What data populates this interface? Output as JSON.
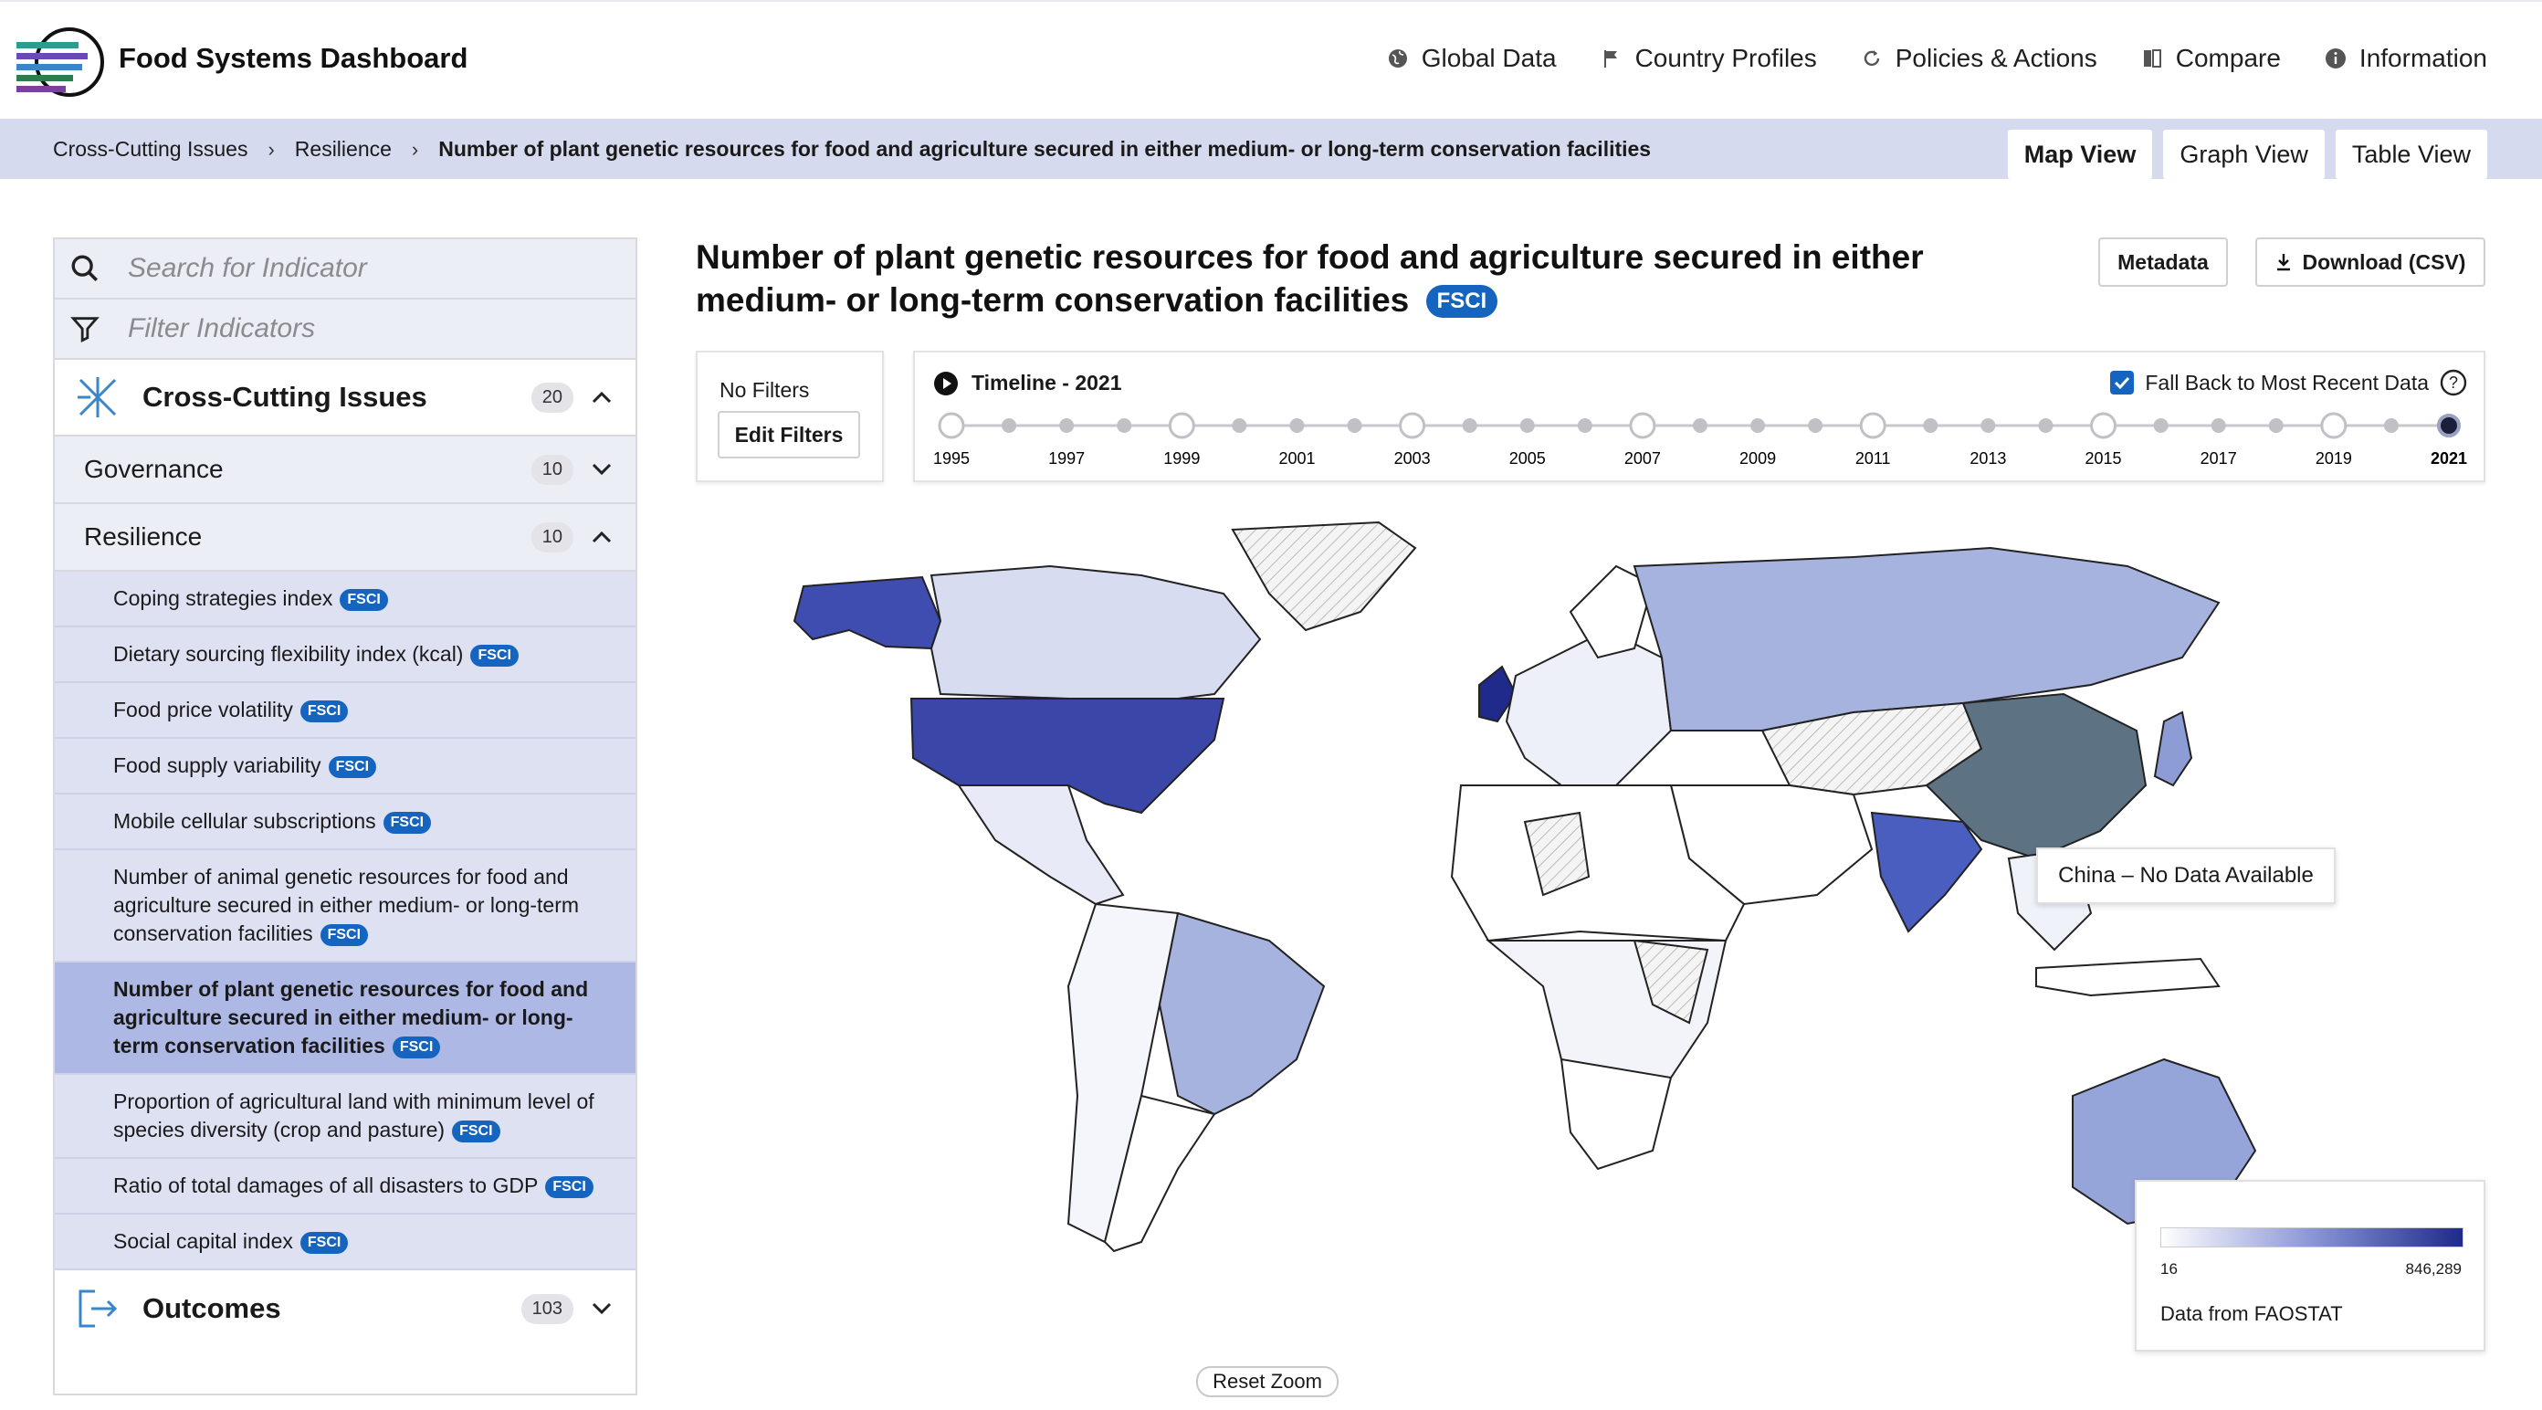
{
  "app": {
    "title": "Food Systems Dashboard"
  },
  "nav": [
    {
      "label": "Global Data",
      "icon": "globe-icon"
    },
    {
      "label": "Country Profiles",
      "icon": "flag-icon"
    },
    {
      "label": "Policies & Actions",
      "icon": "refresh-icon"
    },
    {
      "label": "Compare",
      "icon": "compare-icon"
    },
    {
      "label": "Information",
      "icon": "info-icon"
    }
  ],
  "breadcrumb": {
    "items": [
      "Cross-Cutting Issues",
      "Resilience"
    ],
    "current": "Number of plant genetic resources for food and agriculture secured in either medium- or long-term conservation facilities"
  },
  "view_tabs": {
    "map": "Map View",
    "graph": "Graph View",
    "table": "Table View"
  },
  "sidebar": {
    "search_placeholder": "Search for Indicator",
    "filter_placeholder": "Filter Indicators",
    "category": {
      "label": "Cross-Cutting Issues",
      "count": "20"
    },
    "governance": {
      "label": "Governance",
      "count": "10"
    },
    "resilience": {
      "label": "Resilience",
      "count": "10"
    },
    "badge": "FSCI",
    "indicators": [
      "Coping strategies index",
      "Dietary sourcing flexibility index (kcal)",
      "Food price volatility",
      "Food supply variability",
      "Mobile cellular subscriptions",
      "Number of animal genetic resources for food and agriculture secured in either medium- or long-term conservation facilities",
      "Number of plant genetic resources for food and agriculture secured in either medium- or long-term conservation facilities",
      "Proportion of agricultural land with minimum level of species diversity (crop and pasture)",
      "Ratio of total damages of all disasters to GDP",
      "Social capital index"
    ],
    "outcomes": {
      "label": "Outcomes",
      "count": "103"
    }
  },
  "main": {
    "title": "Number of plant genetic resources for food and agriculture secured in either medium- or long-term conservation facilities",
    "badge": "FSCI",
    "metadata_label": "Metadata",
    "download_label": "Download (CSV)",
    "no_filters": "No Filters",
    "edit_filters": "Edit Filters",
    "timeline_title": "Timeline - 2021",
    "fallback_label": "Fall Back to Most Recent Data",
    "years": [
      "1995",
      "1997",
      "1999",
      "2001",
      "2003",
      "2005",
      "2007",
      "2009",
      "2011",
      "2013",
      "2015",
      "2017",
      "2019",
      "2021"
    ],
    "selected_year": "2021",
    "tooltip": "China – No Data Available",
    "legend_min": "16",
    "legend_max": "846,289",
    "legend_source": "Data from FAOSTAT",
    "reset_zoom": "Reset Zoom"
  },
  "colors": {
    "accent": "#1565c0",
    "crumb_bg": "#d6daef",
    "scale_low": "#ffffff",
    "scale_high": "#1f2a8a"
  }
}
